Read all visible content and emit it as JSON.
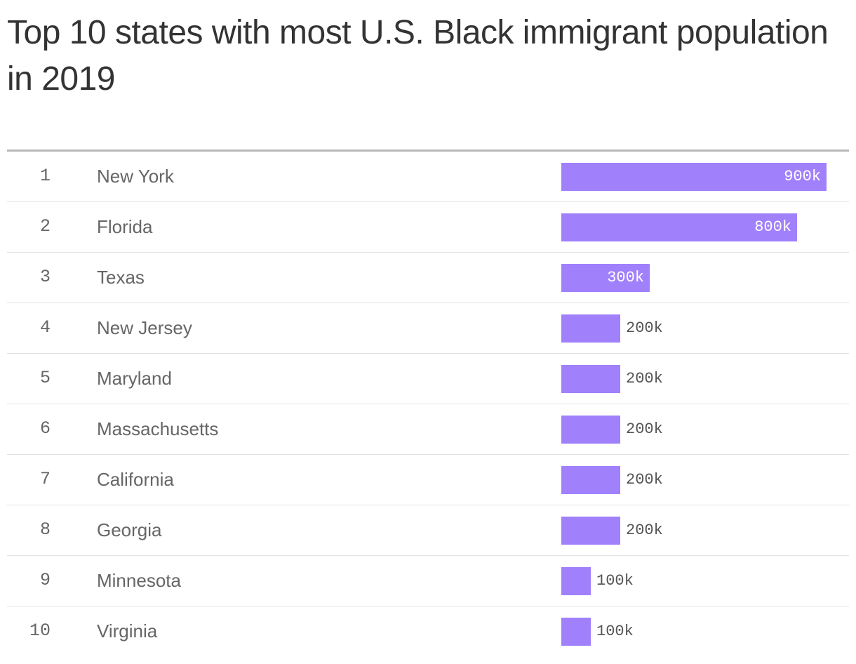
{
  "title": "Top 10 states with most U.S. Black immigrant population in 2019",
  "colors": {
    "bar": "#a180fc",
    "text": "#666666",
    "title": "#333333"
  },
  "chart_data": {
    "type": "bar",
    "orientation": "horizontal",
    "title": "Top 10 states with most U.S. Black immigrant population in 2019",
    "columns": [
      "rank",
      "state",
      "population"
    ],
    "xlim": [
      0,
      900000
    ],
    "grid": false,
    "rows": [
      {
        "rank": "1",
        "state": "New York",
        "value": 900000,
        "label": "900k"
      },
      {
        "rank": "2",
        "state": "Florida",
        "value": 800000,
        "label": "800k"
      },
      {
        "rank": "3",
        "state": "Texas",
        "value": 300000,
        "label": "300k"
      },
      {
        "rank": "4",
        "state": "New Jersey",
        "value": 200000,
        "label": "200k"
      },
      {
        "rank": "5",
        "state": "Maryland",
        "value": 200000,
        "label": "200k"
      },
      {
        "rank": "6",
        "state": "Massachusetts",
        "value": 200000,
        "label": "200k"
      },
      {
        "rank": "7",
        "state": "California",
        "value": 200000,
        "label": "200k"
      },
      {
        "rank": "8",
        "state": "Georgia",
        "value": 200000,
        "label": "200k"
      },
      {
        "rank": "9",
        "state": "Minnesota",
        "value": 100000,
        "label": "100k"
      },
      {
        "rank": "10",
        "state": "Virginia",
        "value": 100000,
        "label": "100k"
      }
    ]
  }
}
